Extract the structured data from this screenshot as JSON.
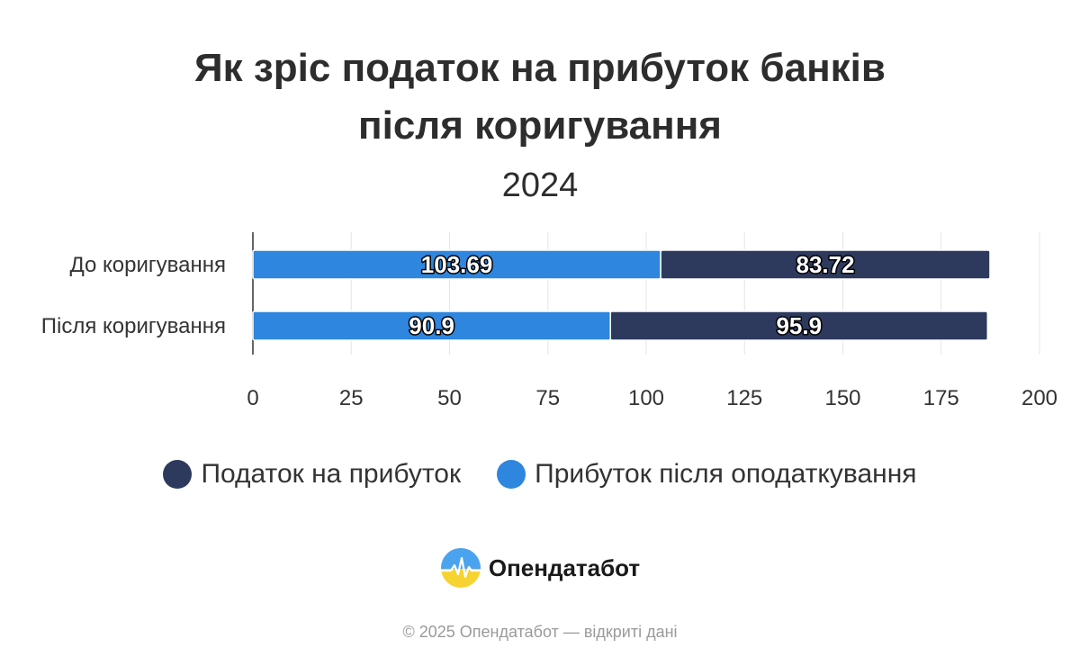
{
  "title_line1": "Як зріс податок на прибуток банків",
  "title_line2": "після коригування",
  "subtitle": "2024",
  "legend": [
    {
      "label": "Податок на прибуток",
      "color": "#2d3a5e"
    },
    {
      "label": "Прибуток після оподаткування",
      "color": "#2e86de"
    }
  ],
  "brand": "Опендатабот",
  "footer": "© 2025 Опендатабот — відкриті дані",
  "chart_data": {
    "type": "bar",
    "orientation": "horizontal",
    "stacked": true,
    "categories": [
      "До коригування",
      "Після коригування"
    ],
    "series": [
      {
        "name": "Прибуток після оподаткування",
        "values": [
          103.69,
          90.9
        ],
        "color": "#2e86de"
      },
      {
        "name": "Податок на прибуток",
        "values": [
          83.72,
          95.9
        ],
        "color": "#2d3a5e"
      }
    ],
    "xlim": [
      0,
      200
    ],
    "xticks": [
      0,
      25,
      50,
      75,
      100,
      125,
      150,
      175,
      200
    ],
    "grid": true,
    "legend_position": "bottom"
  }
}
